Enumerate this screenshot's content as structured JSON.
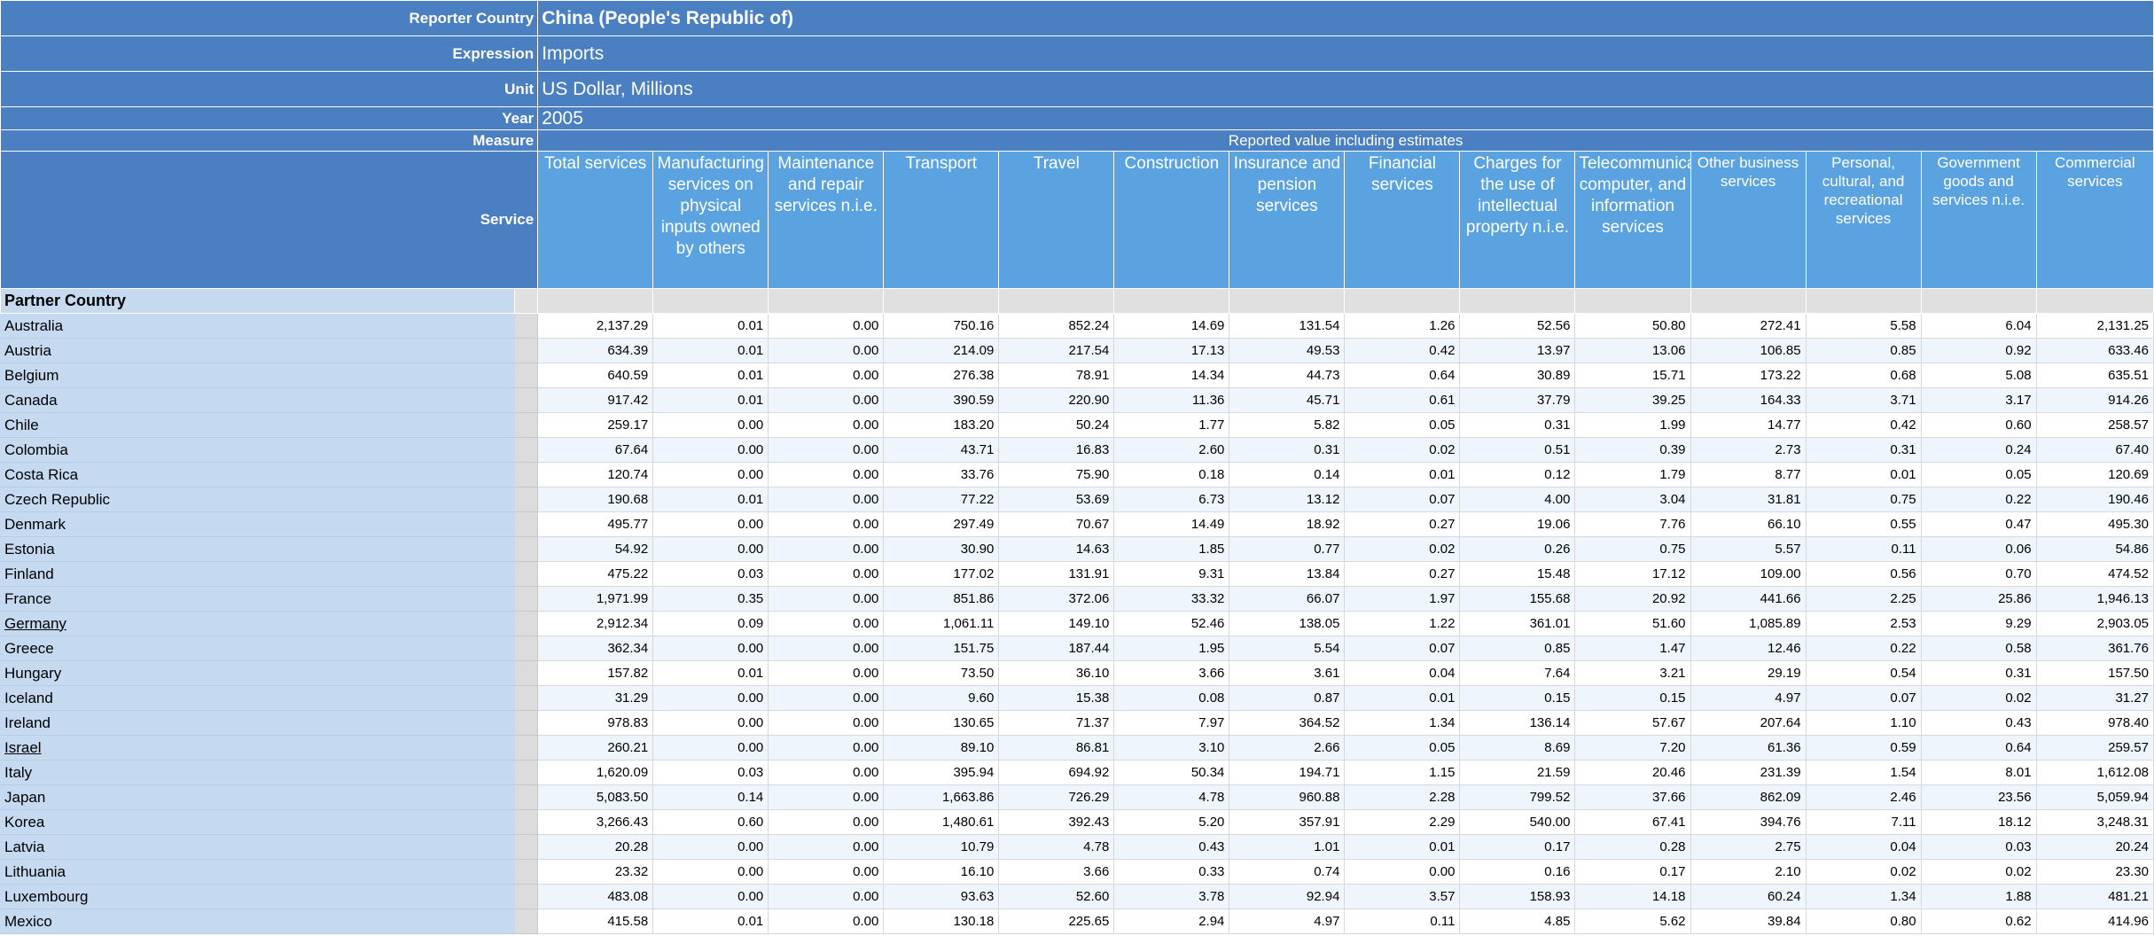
{
  "header": {
    "reporter_label": "Reporter Country",
    "reporter_value": "China (People's Republic of)",
    "expression_label": "Expression",
    "expression_value": "Imports",
    "unit_label": "Unit",
    "unit_value": "US Dollar, Millions",
    "year_label": "Year",
    "year_value": "2005",
    "measure_label": "Measure",
    "measure_value": "Reported value including estimates",
    "service_label": "Service",
    "partner_label": "Partner Country"
  },
  "columns": [
    "Total services",
    "Manufacturing services on physical inputs owned by others",
    "Maintenance and repair services n.i.e.",
    "Transport",
    "Travel",
    "Construction",
    "Insurance and pension services",
    "Financial services",
    "Charges for the use of intellectual property n.i.e.",
    "Telecommunications, computer, and information services",
    "Other business services",
    "Personal, cultural, and recreational services",
    "Government goods and services n.i.e.",
    "Commercial services"
  ],
  "rows": [
    {
      "country": "Australia",
      "values": [
        "2,137.29",
        "0.01",
        "0.00",
        "750.16",
        "852.24",
        "14.69",
        "131.54",
        "1.26",
        "52.56",
        "50.80",
        "272.41",
        "5.58",
        "6.04",
        "2,131.25"
      ]
    },
    {
      "country": "Austria",
      "values": [
        "634.39",
        "0.01",
        "0.00",
        "214.09",
        "217.54",
        "17.13",
        "49.53",
        "0.42",
        "13.97",
        "13.06",
        "106.85",
        "0.85",
        "0.92",
        "633.46"
      ]
    },
    {
      "country": "Belgium",
      "values": [
        "640.59",
        "0.01",
        "0.00",
        "276.38",
        "78.91",
        "14.34",
        "44.73",
        "0.64",
        "30.89",
        "15.71",
        "173.22",
        "0.68",
        "5.08",
        "635.51"
      ]
    },
    {
      "country": "Canada",
      "values": [
        "917.42",
        "0.01",
        "0.00",
        "390.59",
        "220.90",
        "11.36",
        "45.71",
        "0.61",
        "37.79",
        "39.25",
        "164.33",
        "3.71",
        "3.17",
        "914.26"
      ]
    },
    {
      "country": "Chile",
      "values": [
        "259.17",
        "0.00",
        "0.00",
        "183.20",
        "50.24",
        "1.77",
        "5.82",
        "0.05",
        "0.31",
        "1.99",
        "14.77",
        "0.42",
        "0.60",
        "258.57"
      ]
    },
    {
      "country": "Colombia",
      "values": [
        "67.64",
        "0.00",
        "0.00",
        "43.71",
        "16.83",
        "2.60",
        "0.31",
        "0.02",
        "0.51",
        "0.39",
        "2.73",
        "0.31",
        "0.24",
        "67.40"
      ]
    },
    {
      "country": "Costa Rica",
      "values": [
        "120.74",
        "0.00",
        "0.00",
        "33.76",
        "75.90",
        "0.18",
        "0.14",
        "0.01",
        "0.12",
        "1.79",
        "8.77",
        "0.01",
        "0.05",
        "120.69"
      ]
    },
    {
      "country": "Czech Republic",
      "values": [
        "190.68",
        "0.01",
        "0.00",
        "77.22",
        "53.69",
        "6.73",
        "13.12",
        "0.07",
        "4.00",
        "3.04",
        "31.81",
        "0.75",
        "0.22",
        "190.46"
      ]
    },
    {
      "country": "Denmark",
      "values": [
        "495.77",
        "0.00",
        "0.00",
        "297.49",
        "70.67",
        "14.49",
        "18.92",
        "0.27",
        "19.06",
        "7.76",
        "66.10",
        "0.55",
        "0.47",
        "495.30"
      ]
    },
    {
      "country": "Estonia",
      "values": [
        "54.92",
        "0.00",
        "0.00",
        "30.90",
        "14.63",
        "1.85",
        "0.77",
        "0.02",
        "0.26",
        "0.75",
        "5.57",
        "0.11",
        "0.06",
        "54.86"
      ]
    },
    {
      "country": "Finland",
      "values": [
        "475.22",
        "0.03",
        "0.00",
        "177.02",
        "131.91",
        "9.31",
        "13.84",
        "0.27",
        "15.48",
        "17.12",
        "109.00",
        "0.56",
        "0.70",
        "474.52"
      ]
    },
    {
      "country": "France",
      "values": [
        "1,971.99",
        "0.35",
        "0.00",
        "851.86",
        "372.06",
        "33.32",
        "66.07",
        "1.97",
        "155.68",
        "20.92",
        "441.66",
        "2.25",
        "25.86",
        "1,946.13"
      ]
    },
    {
      "country": "Germany",
      "values": [
        "2,912.34",
        "0.09",
        "0.00",
        "1,061.11",
        "149.10",
        "52.46",
        "138.05",
        "1.22",
        "361.01",
        "51.60",
        "1,085.89",
        "2.53",
        "9.29",
        "2,903.05"
      ]
    },
    {
      "country": "Greece",
      "values": [
        "362.34",
        "0.00",
        "0.00",
        "151.75",
        "187.44",
        "1.95",
        "5.54",
        "0.07",
        "0.85",
        "1.47",
        "12.46",
        "0.22",
        "0.58",
        "361.76"
      ]
    },
    {
      "country": "Hungary",
      "values": [
        "157.82",
        "0.01",
        "0.00",
        "73.50",
        "36.10",
        "3.66",
        "3.61",
        "0.04",
        "7.64",
        "3.21",
        "29.19",
        "0.54",
        "0.31",
        "157.50"
      ]
    },
    {
      "country": "Iceland",
      "values": [
        "31.29",
        "0.00",
        "0.00",
        "9.60",
        "15.38",
        "0.08",
        "0.87",
        "0.01",
        "0.15",
        "0.15",
        "4.97",
        "0.07",
        "0.02",
        "31.27"
      ]
    },
    {
      "country": "Ireland",
      "values": [
        "978.83",
        "0.00",
        "0.00",
        "130.65",
        "71.37",
        "7.97",
        "364.52",
        "1.34",
        "136.14",
        "57.67",
        "207.64",
        "1.10",
        "0.43",
        "978.40"
      ]
    },
    {
      "country": "Israel",
      "values": [
        "260.21",
        "0.00",
        "0.00",
        "89.10",
        "86.81",
        "3.10",
        "2.66",
        "0.05",
        "8.69",
        "7.20",
        "61.36",
        "0.59",
        "0.64",
        "259.57"
      ]
    },
    {
      "country": "Italy",
      "values": [
        "1,620.09",
        "0.03",
        "0.00",
        "395.94",
        "694.92",
        "50.34",
        "194.71",
        "1.15",
        "21.59",
        "20.46",
        "231.39",
        "1.54",
        "8.01",
        "1,612.08"
      ]
    },
    {
      "country": "Japan",
      "values": [
        "5,083.50",
        "0.14",
        "0.00",
        "1,663.86",
        "726.29",
        "4.78",
        "960.88",
        "2.28",
        "799.52",
        "37.66",
        "862.09",
        "2.46",
        "23.56",
        "5,059.94"
      ]
    },
    {
      "country": "Korea",
      "values": [
        "3,266.43",
        "0.60",
        "0.00",
        "1,480.61",
        "392.43",
        "5.20",
        "357.91",
        "2.29",
        "540.00",
        "67.41",
        "394.76",
        "7.11",
        "18.12",
        "3,248.31"
      ]
    },
    {
      "country": "Latvia",
      "values": [
        "20.28",
        "0.00",
        "0.00",
        "10.79",
        "4.78",
        "0.43",
        "1.01",
        "0.01",
        "0.17",
        "0.28",
        "2.75",
        "0.04",
        "0.03",
        "20.24"
      ]
    },
    {
      "country": "Lithuania",
      "values": [
        "23.32",
        "0.00",
        "0.00",
        "16.10",
        "3.66",
        "0.33",
        "0.74",
        "0.00",
        "0.16",
        "0.17",
        "2.10",
        "0.02",
        "0.02",
        "23.30"
      ]
    },
    {
      "country": "Luxembourg",
      "values": [
        "483.08",
        "0.00",
        "0.00",
        "93.63",
        "52.60",
        "3.78",
        "92.94",
        "3.57",
        "158.93",
        "14.18",
        "60.24",
        "1.34",
        "1.88",
        "481.21"
      ]
    },
    {
      "country": "Mexico",
      "values": [
        "415.58",
        "0.01",
        "0.00",
        "130.18",
        "225.65",
        "2.94",
        "4.97",
        "0.11",
        "4.85",
        "5.62",
        "39.84",
        "0.80",
        "0.62",
        "414.96"
      ]
    }
  ]
}
